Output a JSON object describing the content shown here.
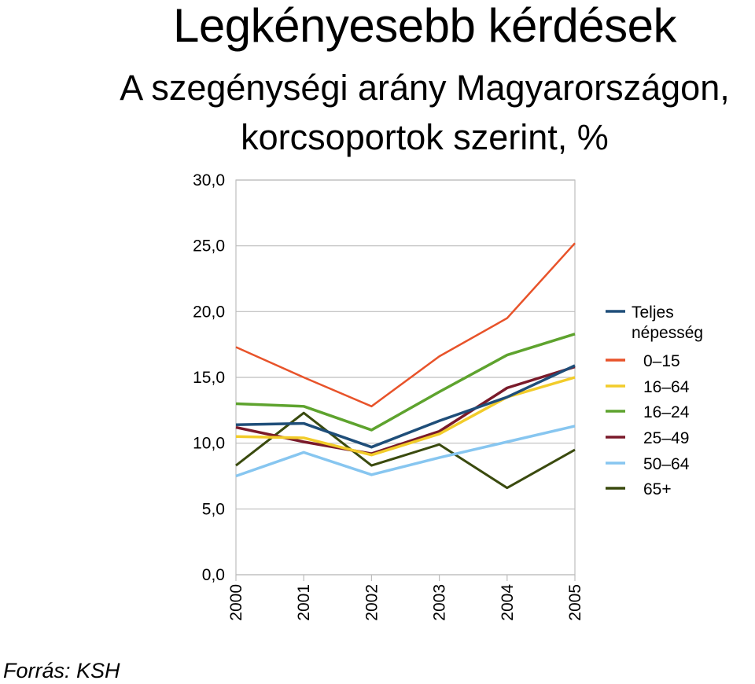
{
  "title": "Legkényesebb kérdések",
  "subtitle_line1": "A szegénységi arány Magyarországon,",
  "subtitle_line2": "korcsoportok szerint, %",
  "source": "Forrás: KSH",
  "chart_data": {
    "type": "line",
    "x": [
      "2000",
      "2001",
      "2002",
      "2003",
      "2004",
      "2005"
    ],
    "ylim": [
      0,
      30
    ],
    "yticks": [
      "0,0",
      "5,0",
      "10,0",
      "15,0",
      "20,0",
      "25,0",
      "30,0"
    ],
    "grid": true,
    "legend_position": "right",
    "series": [
      {
        "name": "Teljes népesség",
        "legend_lines": [
          "Teljes",
          "népesség"
        ],
        "color": "#1f4e79",
        "values": [
          11.4,
          11.5,
          9.7,
          11.7,
          13.5,
          15.9
        ]
      },
      {
        "name": "0–15",
        "color": "#e8532a",
        "values": [
          17.3,
          15.0,
          12.8,
          16.6,
          19.5,
          25.2
        ]
      },
      {
        "name": "16–64",
        "color": "#f2cc2a",
        "values": [
          10.5,
          10.4,
          9.1,
          10.7,
          13.5,
          15.0
        ]
      },
      {
        "name": "16–24",
        "color": "#5ea32e",
        "values": [
          13.0,
          12.8,
          11.0,
          13.9,
          16.7,
          18.3
        ]
      },
      {
        "name": "25–49",
        "color": "#7a1a2a",
        "values": [
          11.2,
          10.1,
          9.2,
          10.9,
          14.2,
          15.8
        ]
      },
      {
        "name": "50–64",
        "color": "#87c6f0",
        "values": [
          7.5,
          9.3,
          7.6,
          8.9,
          10.1,
          11.3
        ]
      },
      {
        "name": "65+",
        "color": "#3a4a0e",
        "values": [
          8.3,
          12.3,
          8.3,
          9.9,
          6.6,
          9.5
        ]
      }
    ]
  }
}
